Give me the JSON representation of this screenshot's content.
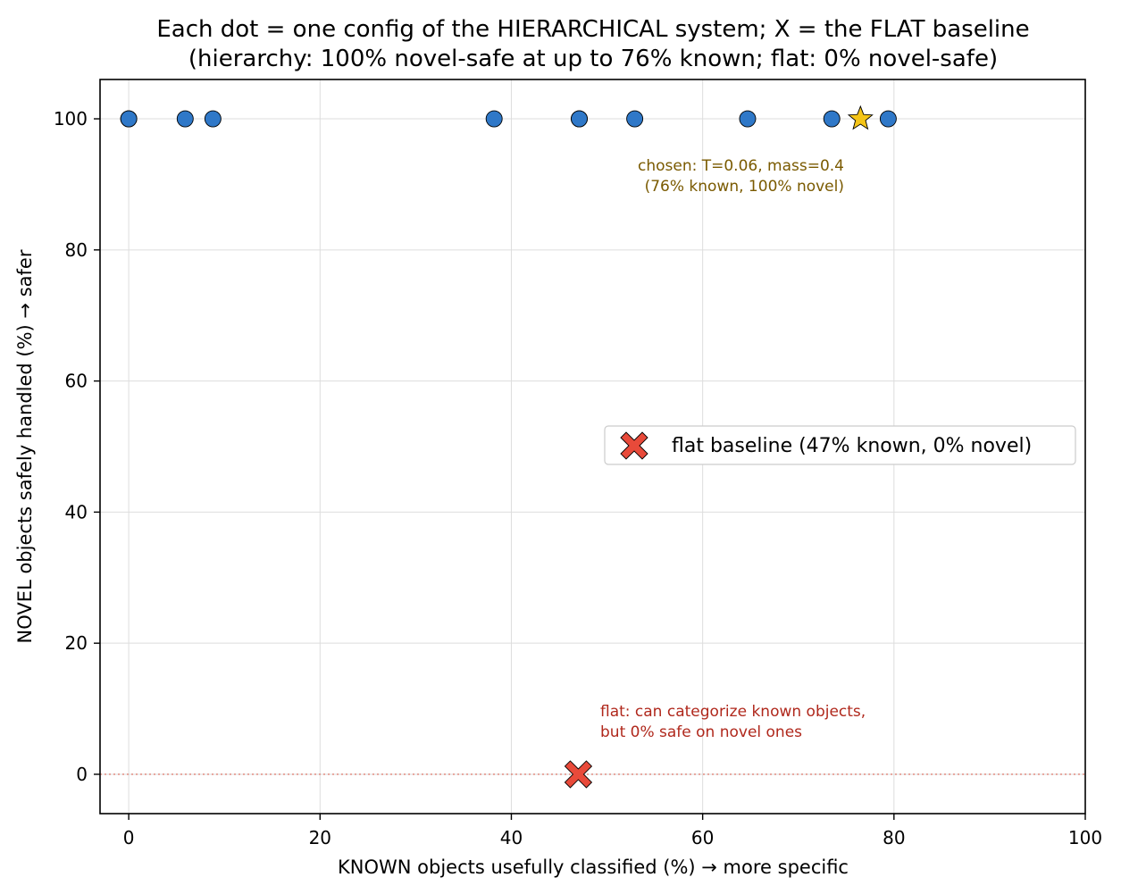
{
  "chart_data": {
    "type": "scatter",
    "title": [
      "Each dot = one config of the HIERARCHICAL system; X = the FLAT baseline",
      "(hierarchy: 100% novel-safe at up to 76% known;  flat: 0% novel-safe)"
    ],
    "xlabel": "KNOWN objects usefully classified (%)  →  more specific",
    "ylabel": "NOVEL objects safely handled (%)  →  safer",
    "xlim": [
      -3,
      100
    ],
    "ylim": [
      -6,
      106
    ],
    "xticks": [
      0,
      20,
      40,
      60,
      80,
      100
    ],
    "yticks": [
      0,
      20,
      40,
      60,
      80,
      100
    ],
    "grid": true,
    "series": [
      {
        "role": "hierarchical-configs",
        "color": "#2f78c8",
        "marker": "circle",
        "x": [
          0,
          0,
          5.9,
          8.8,
          38.2,
          47.1,
          47.1,
          52.9,
          64.7,
          73.5,
          79.4
        ],
        "y": [
          100,
          100,
          100,
          100,
          100,
          100,
          100,
          100,
          100,
          100,
          100
        ]
      },
      {
        "role": "chosen-config",
        "color": "#f5c518",
        "marker": "star",
        "x": [
          76.5
        ],
        "y": [
          100
        ]
      },
      {
        "name": "flat baseline (47% known, 0% novel)",
        "role": "flat-baseline",
        "color": "#e84a3a",
        "marker": "X",
        "x": [
          47
        ],
        "y": [
          0
        ]
      }
    ],
    "reference_line": {
      "y": 0,
      "color": "#e07060",
      "style": "dotted"
    },
    "annotations": [
      {
        "lines": [
          "chosen: T=0.06, mass=0.4",
          "(76% known, 100% novel)"
        ],
        "color": "#7a5a00"
      },
      {
        "lines": [
          "flat: can categorize known objects,",
          "but 0% safe on novel ones"
        ],
        "color": "#b0281c"
      }
    ],
    "legend": {
      "placement": "center-right",
      "entries": [
        "flat baseline (47% known, 0% novel)"
      ]
    }
  }
}
